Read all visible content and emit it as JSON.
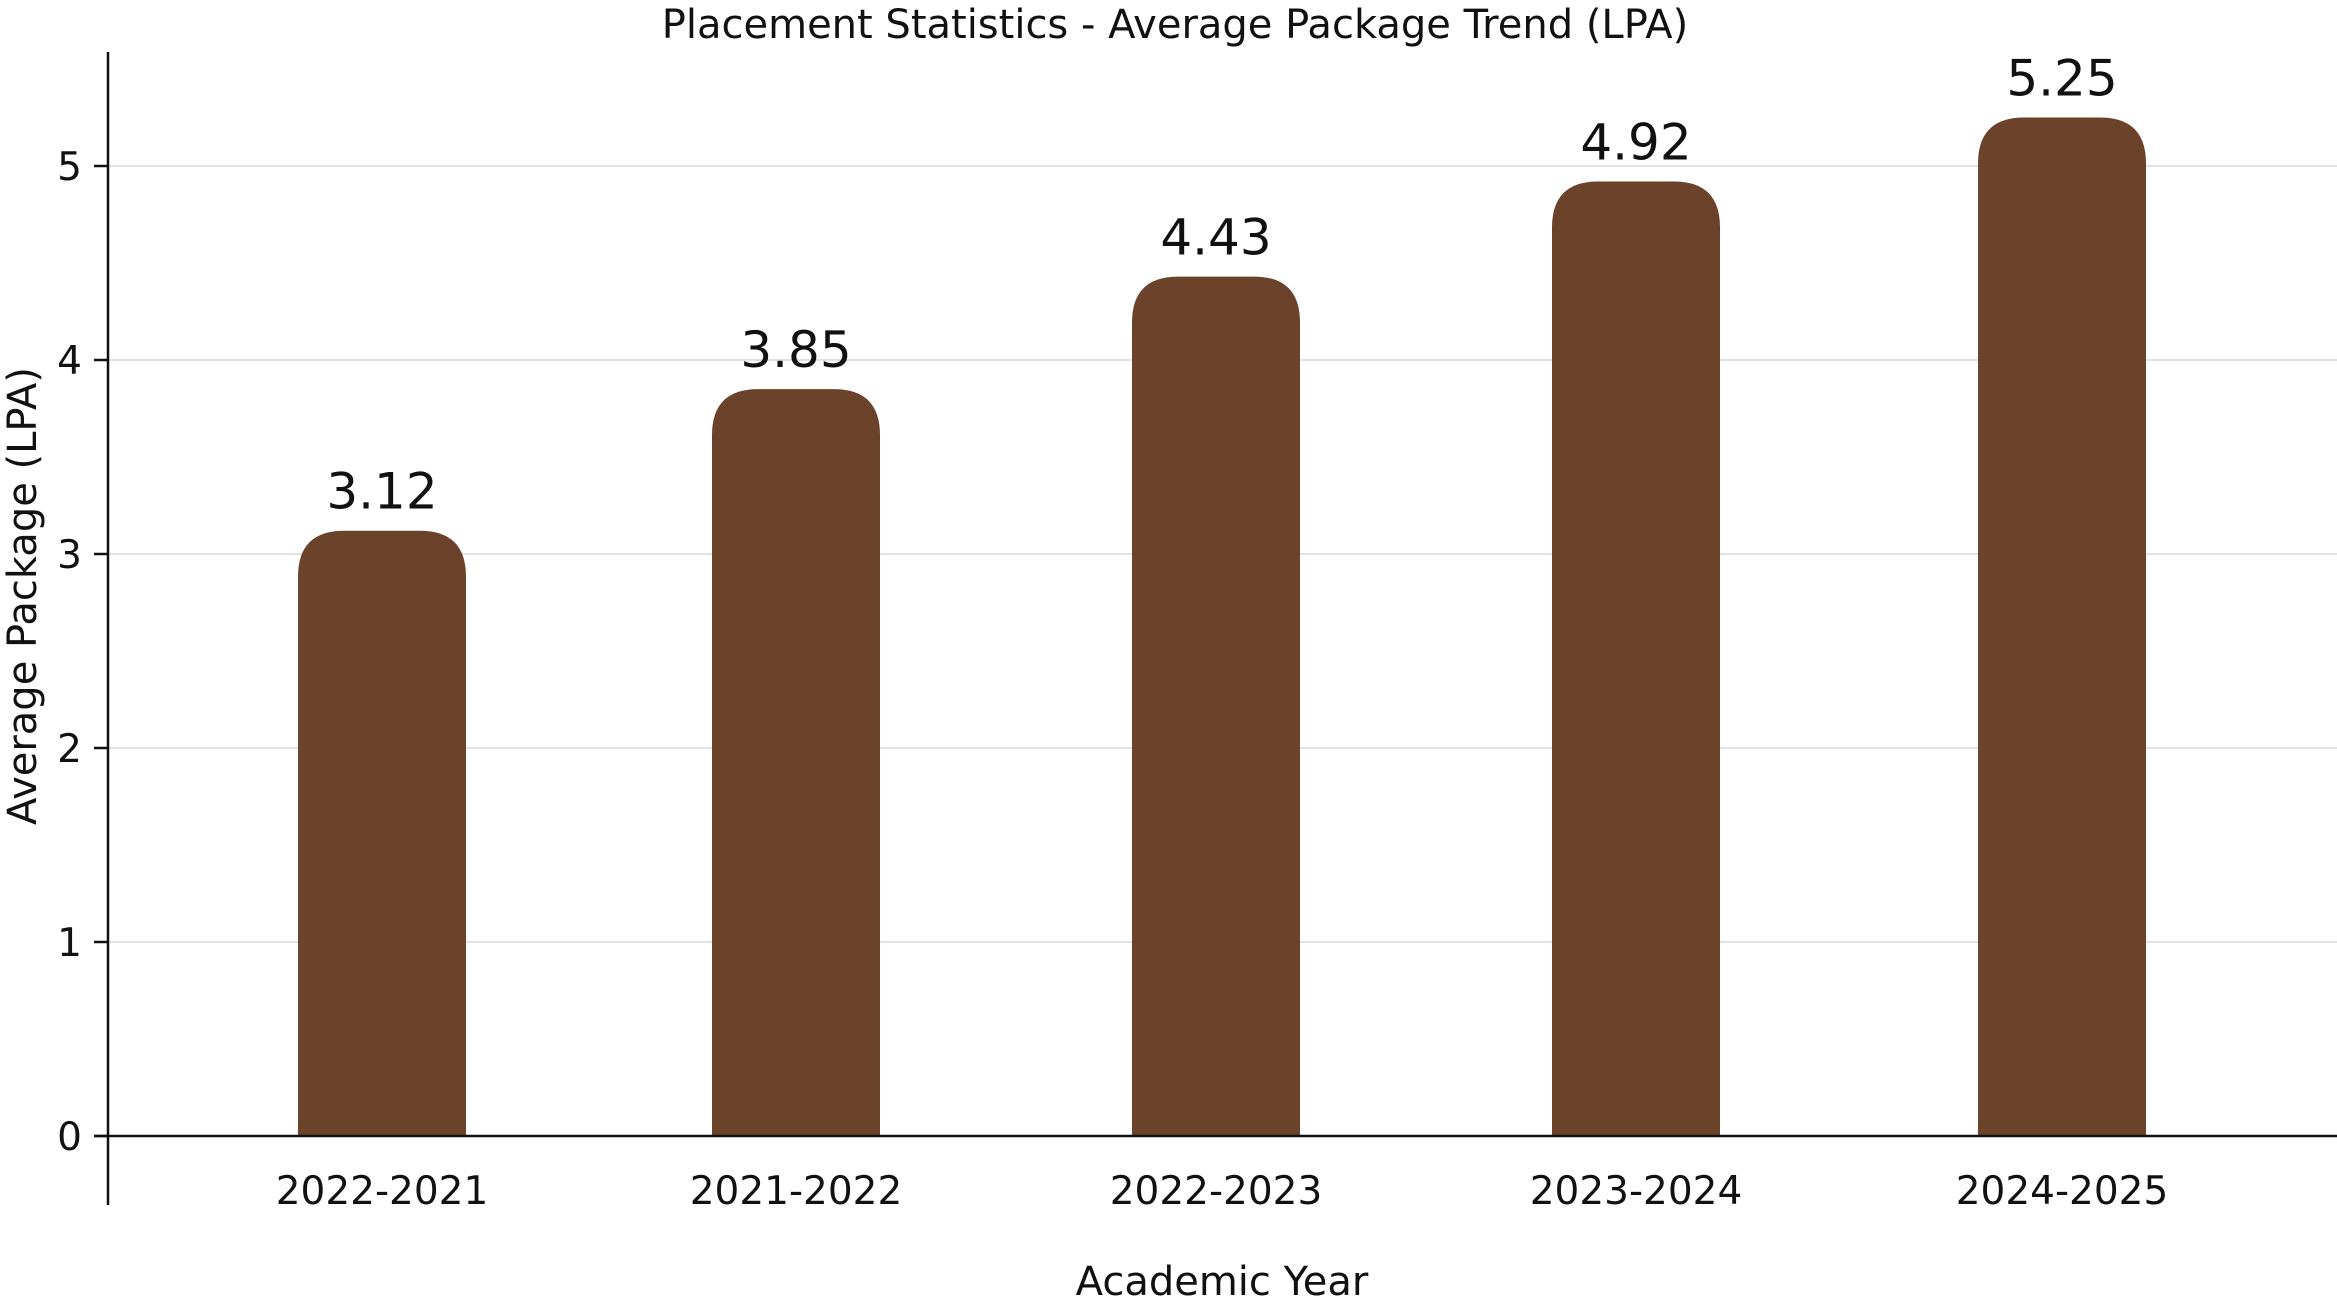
{
  "chart_data": {
    "type": "bar",
    "title": "Placement Statistics - Average Package Trend  (LPA)",
    "xlabel": "Academic Year",
    "ylabel": "Average Package (LPA)",
    "categories": [
      "2022-2021",
      "2021-2022",
      "2022-2023",
      "2023-2024",
      "2024-2025"
    ],
    "values": [
      3.12,
      3.85,
      4.43,
      4.92,
      5.25
    ],
    "value_labels": [
      "3.12",
      "3.85",
      "4.43",
      "4.92",
      "5.25"
    ],
    "yticks": [
      0,
      1,
      2,
      3,
      4,
      5
    ],
    "ylim": [
      0,
      5.58
    ],
    "grid": true,
    "bar_color": "#6b432a"
  }
}
